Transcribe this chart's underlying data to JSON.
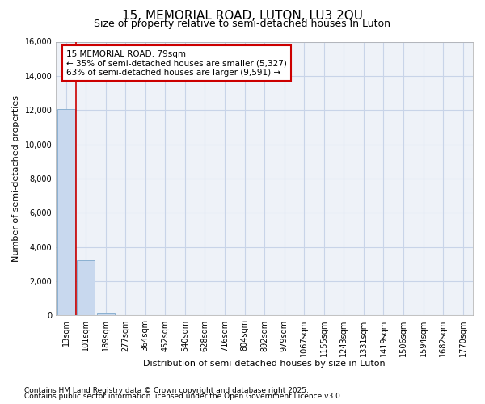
{
  "title": "15, MEMORIAL ROAD, LUTON, LU3 2QU",
  "subtitle": "Size of property relative to semi-detached houses in Luton",
  "xlabel": "Distribution of semi-detached houses by size in Luton",
  "ylabel": "Number of semi-detached properties",
  "footnote1": "Contains HM Land Registry data © Crown copyright and database right 2025.",
  "footnote2": "Contains public sector information licensed under the Open Government Licence v3.0.",
  "annotation_title": "15 MEMORIAL ROAD: 79sqm",
  "annotation_line2": "← 35% of semi-detached houses are smaller (5,327)",
  "annotation_line3": "63% of semi-detached houses are larger (9,591) →",
  "property_bin_index": 0,
  "red_line_x": 0.5,
  "bar_fill_color": "#c8d8ee",
  "bar_edge_color": "#8ab0d0",
  "bin_labels": [
    "13sqm",
    "101sqm",
    "189sqm",
    "277sqm",
    "364sqm",
    "452sqm",
    "540sqm",
    "628sqm",
    "716sqm",
    "804sqm",
    "892sqm",
    "979sqm",
    "1067sqm",
    "1155sqm",
    "1243sqm",
    "1331sqm",
    "1419sqm",
    "1506sqm",
    "1594sqm",
    "1682sqm",
    "1770sqm"
  ],
  "bin_values": [
    12050,
    3250,
    150,
    0,
    0,
    0,
    0,
    0,
    0,
    0,
    0,
    0,
    0,
    0,
    0,
    0,
    0,
    0,
    0,
    0,
    0
  ],
  "ylim": [
    0,
    16000
  ],
  "yticks": [
    0,
    2000,
    4000,
    6000,
    8000,
    10000,
    12000,
    14000,
    16000
  ],
  "red_line_color": "#cc0000",
  "annotation_box_edgecolor": "#cc0000",
  "plot_bg_color": "#eef2f8",
  "figure_bg_color": "#ffffff",
  "grid_color": "#c8d4e8",
  "title_fontsize": 11,
  "subtitle_fontsize": 9,
  "ylabel_fontsize": 8,
  "xlabel_fontsize": 8,
  "tick_fontsize": 7,
  "annotation_fontsize": 7.5,
  "footnote_fontsize": 6.5
}
